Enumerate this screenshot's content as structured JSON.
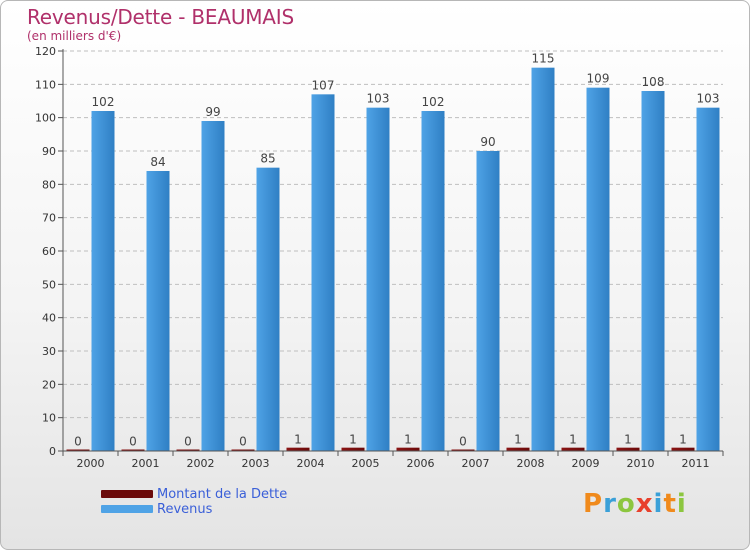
{
  "title": "Revenus/Dette - BEAUMAIS",
  "subtitle": "(en milliers d'€)",
  "logo": {
    "text": "Proxiti",
    "colors": [
      "#f08a1c",
      "#3aa0d8",
      "#8cc63f",
      "#e8402c",
      "#3aa0d8",
      "#f08a1c",
      "#8cc63f"
    ]
  },
  "colors": {
    "debt": "#6b0a0a",
    "revenue": "#4fa3e6",
    "revenue_dark": "#2f7fc4",
    "title": "#b0306a",
    "legend_text": "#3a5fd8"
  },
  "chart_data": {
    "type": "bar",
    "title": "Revenus/Dette - BEAUMAIS",
    "subtitle": "(en milliers d'€)",
    "xlabel": "",
    "ylabel": "",
    "ylim": [
      0,
      120
    ],
    "yticks": [
      0,
      10,
      20,
      30,
      40,
      50,
      60,
      70,
      80,
      90,
      100,
      110,
      120
    ],
    "grid": true,
    "legend_position": "bottom-left",
    "categories": [
      "2000",
      "2001",
      "2002",
      "2003",
      "2004",
      "2005",
      "2006",
      "2007",
      "2008",
      "2009",
      "2010",
      "2011"
    ],
    "series": [
      {
        "name": "Montant de la Dette",
        "values": [
          0,
          0,
          0,
          0,
          1,
          1,
          1,
          0,
          1,
          1,
          1,
          1
        ]
      },
      {
        "name": "Revenus",
        "values": [
          102,
          84,
          99,
          85,
          107,
          103,
          102,
          90,
          115,
          109,
          108,
          103
        ]
      }
    ]
  }
}
